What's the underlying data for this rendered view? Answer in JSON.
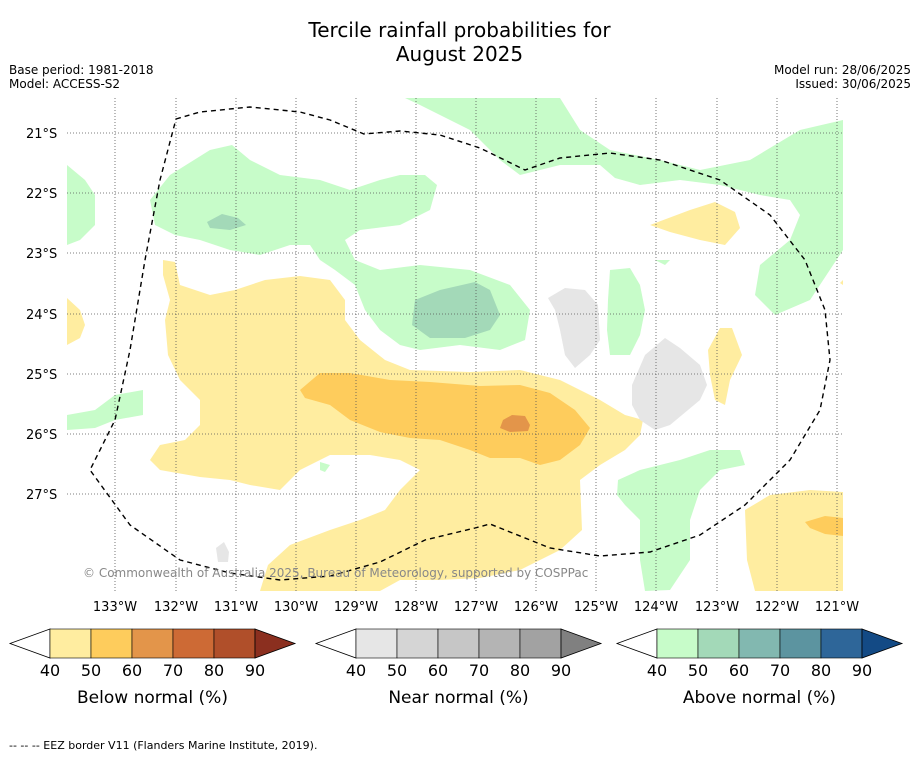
{
  "title_line1": "Tercile rainfall probabilities for",
  "title_line2": "August 2025",
  "base_period": "Base period: 1981-2018",
  "model": "Model: ACCESS-S2",
  "model_run": "Model run: 28/06/2025",
  "issued": "Issued: 30/06/2025",
  "copyright": "© Commonwealth of Australia 2025, Bureau of Meteorology, supported by COSPPac",
  "lat_labels": [
    "21°S",
    "22°S",
    "23°S",
    "24°S",
    "25°S",
    "26°S",
    "27°S"
  ],
  "lon_labels": [
    "133°W",
    "132°W",
    "131°W",
    "130°W",
    "129°W",
    "128°W",
    "127°W",
    "126°W",
    "125°W",
    "124°W",
    "123°W",
    "122°W",
    "121°W"
  ],
  "colorbars": [
    {
      "title": "Below normal (%)",
      "ticks": [
        "40",
        "50",
        "60",
        "70",
        "80",
        "90"
      ],
      "colors": [
        "#ffeda0",
        "#fecc5c",
        "#e3954a",
        "#cd6a35",
        "#b04f2a",
        "#8b2f1f"
      ]
    },
    {
      "title": "Near normal (%)",
      "ticks": [
        "40",
        "50",
        "60",
        "70",
        "80",
        "90"
      ],
      "colors": [
        "#e6e6e6",
        "#d5d5d5",
        "#c6c6c6",
        "#b4b4b4",
        "#a2a2a2",
        "#808080"
      ]
    },
    {
      "title": "Above normal (%)",
      "ticks": [
        "40",
        "50",
        "60",
        "70",
        "80",
        "90"
      ],
      "colors": [
        "#c7fcc9",
        "#a3d9b8",
        "#82b8b0",
        "#5c94a0",
        "#2e6699",
        "#134a85"
      ]
    }
  ],
  "footnote": "--  --  -- EEZ border V11 (Flanders Marine Institute, 2019)."
}
